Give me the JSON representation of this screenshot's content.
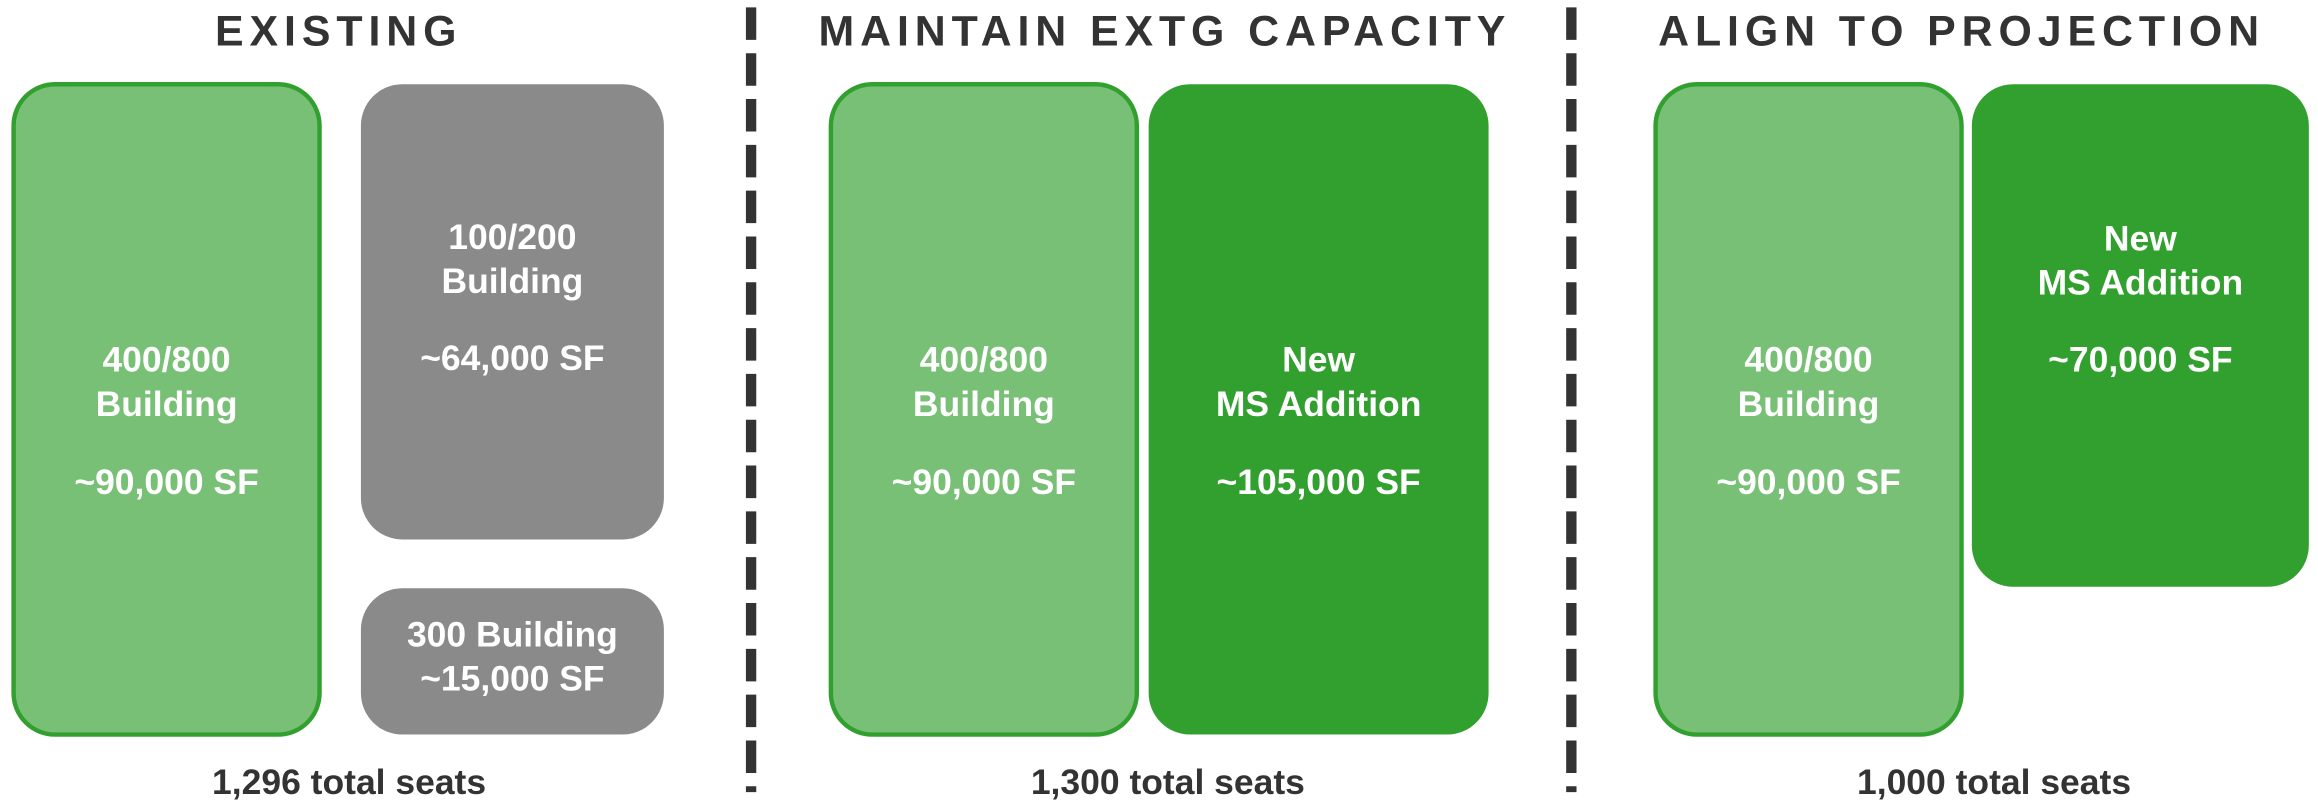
{
  "columns": [
    {
      "title": "EXISTING",
      "blocks": [
        {
          "lines": [
            "400/800",
            "Building",
            "~90,000 SF"
          ]
        },
        {
          "lines": [
            "100/200",
            "Building",
            "~64,000 SF"
          ]
        },
        {
          "lines": [
            "300 Building",
            "~15,000 SF"
          ]
        }
      ],
      "seats": "1,296 total seats"
    },
    {
      "title": "MAINTAIN EXTG CAPACITY",
      "blocks": [
        {
          "lines": [
            "400/800",
            "Building",
            "~90,000 SF"
          ]
        },
        {
          "lines": [
            "New",
            "MS Addition",
            "~105,000 SF"
          ]
        }
      ],
      "seats": "1,300 total seats"
    },
    {
      "title": "ALIGN TO PROJECTION",
      "blocks": [
        {
          "lines": [
            "400/800",
            "Building",
            "~90,000 SF"
          ]
        },
        {
          "lines": [
            "New",
            "MS Addition",
            "~70,000 SF"
          ]
        }
      ],
      "seats": "1,000 total seats"
    }
  ]
}
